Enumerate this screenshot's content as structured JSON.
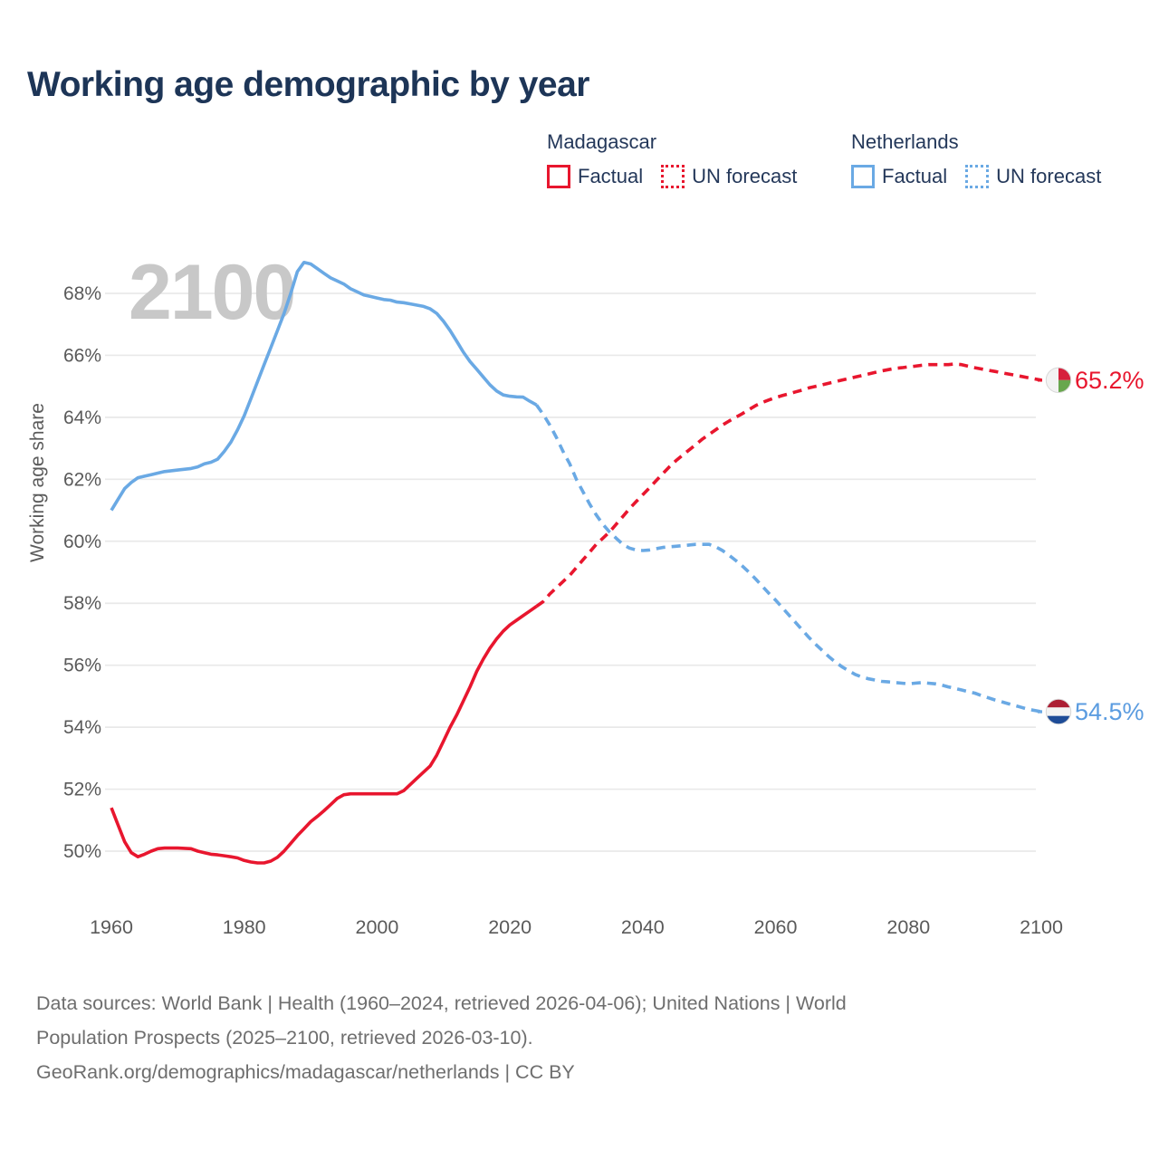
{
  "title": "Working age demographic by year",
  "watermark": "2100",
  "legend": {
    "groups": [
      {
        "country": "Madagascar",
        "factual_label": "Factual",
        "forecast_label": "UN forecast",
        "color": "#e8162e"
      },
      {
        "country": "Netherlands",
        "factual_label": "Factual",
        "forecast_label": "UN forecast",
        "color": "#6aa9e4"
      }
    ]
  },
  "footer": {
    "lines": [
      "Data sources: World Bank | Health (1960–2024, retrieved 2026-04-06); United Nations | World",
      "Population Prospects (2025–2100, retrieved 2026-03-10).",
      "GeoRank.org/demographics/madagascar/netherlands | CC BY"
    ]
  },
  "chart_data": {
    "type": "line",
    "title": "Working age demographic by year",
    "xlabel": "",
    "ylabel": "Working age share",
    "x_ticks": [
      1960,
      1980,
      2000,
      2020,
      2040,
      2060,
      2080,
      2100
    ],
    "y_ticks": [
      50,
      52,
      54,
      56,
      58,
      60,
      62,
      64,
      66,
      68
    ],
    "y_tick_suffix": "%",
    "xlim": [
      1960,
      2100
    ],
    "ylim": [
      50,
      68
    ],
    "grid": true,
    "legend_position": "top-right",
    "colors": {
      "madagascar": "#e8162e",
      "netherlands": "#6aa9e4",
      "grid": "#e9e9e9",
      "axis_text": "#5a5a5a",
      "watermark": "#c8c8c8"
    },
    "series": [
      {
        "id": "netherlands-factual",
        "country": "Netherlands",
        "kind": "Factual",
        "style": "solid",
        "color": "#6aa9e4",
        "points": [
          [
            1960,
            61.0
          ],
          [
            1961,
            61.35
          ],
          [
            1962,
            61.7
          ],
          [
            1963,
            61.9
          ],
          [
            1964,
            62.05
          ],
          [
            1965,
            62.1
          ],
          [
            1966,
            62.15
          ],
          [
            1967,
            62.2
          ],
          [
            1968,
            62.25
          ],
          [
            1970,
            62.3
          ],
          [
            1972,
            62.35
          ],
          [
            1973,
            62.4
          ],
          [
            1974,
            62.5
          ],
          [
            1975,
            62.55
          ],
          [
            1976,
            62.65
          ],
          [
            1977,
            62.9
          ],
          [
            1978,
            63.2
          ],
          [
            1979,
            63.6
          ],
          [
            1980,
            64.05
          ],
          [
            1981,
            64.6
          ],
          [
            1982,
            65.15
          ],
          [
            1983,
            65.7
          ],
          [
            1984,
            66.25
          ],
          [
            1985,
            66.8
          ],
          [
            1986,
            67.35
          ],
          [
            1987,
            68.0
          ],
          [
            1988,
            68.7
          ],
          [
            1989,
            69.0
          ],
          [
            1990,
            68.95
          ],
          [
            1991,
            68.8
          ],
          [
            1992,
            68.65
          ],
          [
            1993,
            68.5
          ],
          [
            1994,
            68.4
          ],
          [
            1995,
            68.3
          ],
          [
            1996,
            68.15
          ],
          [
            1997,
            68.05
          ],
          [
            1998,
            67.95
          ],
          [
            1999,
            67.9
          ],
          [
            2000,
            67.85
          ],
          [
            2001,
            67.8
          ],
          [
            2002,
            67.78
          ],
          [
            2003,
            67.72
          ],
          [
            2004,
            67.7
          ],
          [
            2005,
            67.66
          ],
          [
            2006,
            67.62
          ],
          [
            2007,
            67.58
          ],
          [
            2008,
            67.5
          ],
          [
            2009,
            67.35
          ],
          [
            2010,
            67.1
          ],
          [
            2011,
            66.8
          ],
          [
            2012,
            66.45
          ],
          [
            2013,
            66.1
          ],
          [
            2014,
            65.8
          ],
          [
            2015,
            65.55
          ],
          [
            2016,
            65.3
          ],
          [
            2017,
            65.05
          ],
          [
            2018,
            64.85
          ],
          [
            2019,
            64.72
          ],
          [
            2020,
            64.68
          ],
          [
            2021,
            64.66
          ],
          [
            2022,
            64.65
          ],
          [
            2023,
            64.52
          ],
          [
            2024,
            64.4
          ]
        ]
      },
      {
        "id": "netherlands-forecast",
        "country": "Netherlands",
        "kind": "UN forecast",
        "style": "dashed",
        "color": "#6aa9e4",
        "points": [
          [
            2024,
            64.4
          ],
          [
            2025,
            64.1
          ],
          [
            2026,
            63.75
          ],
          [
            2027,
            63.35
          ],
          [
            2028,
            62.9
          ],
          [
            2029,
            62.5
          ],
          [
            2030,
            62.0
          ],
          [
            2031,
            61.6
          ],
          [
            2032,
            61.2
          ],
          [
            2033,
            60.85
          ],
          [
            2034,
            60.55
          ],
          [
            2035,
            60.3
          ],
          [
            2036,
            60.1
          ],
          [
            2037,
            59.9
          ],
          [
            2038,
            59.78
          ],
          [
            2039,
            59.72
          ],
          [
            2040,
            59.7
          ],
          [
            2041,
            59.72
          ],
          [
            2042,
            59.76
          ],
          [
            2043,
            59.8
          ],
          [
            2044,
            59.82
          ],
          [
            2045,
            59.84
          ],
          [
            2046,
            59.86
          ],
          [
            2047,
            59.88
          ],
          [
            2048,
            59.9
          ],
          [
            2050,
            59.9
          ],
          [
            2051,
            59.82
          ],
          [
            2052,
            59.7
          ],
          [
            2053,
            59.55
          ],
          [
            2054,
            59.38
          ],
          [
            2055,
            59.2
          ],
          [
            2056,
            59.0
          ],
          [
            2057,
            58.78
          ],
          [
            2058,
            58.55
          ],
          [
            2059,
            58.32
          ],
          [
            2060,
            58.1
          ],
          [
            2061,
            57.86
          ],
          [
            2062,
            57.62
          ],
          [
            2063,
            57.38
          ],
          [
            2064,
            57.14
          ],
          [
            2065,
            56.9
          ],
          [
            2066,
            56.68
          ],
          [
            2067,
            56.48
          ],
          [
            2068,
            56.28
          ],
          [
            2069,
            56.1
          ],
          [
            2070,
            55.95
          ],
          [
            2071,
            55.82
          ],
          [
            2072,
            55.7
          ],
          [
            2073,
            55.62
          ],
          [
            2074,
            55.56
          ],
          [
            2075,
            55.52
          ],
          [
            2076,
            55.48
          ],
          [
            2077,
            55.46
          ],
          [
            2078,
            55.44
          ],
          [
            2079,
            55.42
          ],
          [
            2080,
            55.4
          ],
          [
            2081,
            55.42
          ],
          [
            2082,
            55.44
          ],
          [
            2083,
            55.42
          ],
          [
            2084,
            55.4
          ],
          [
            2085,
            55.36
          ],
          [
            2086,
            55.3
          ],
          [
            2087,
            55.25
          ],
          [
            2088,
            55.2
          ],
          [
            2089,
            55.15
          ],
          [
            2090,
            55.1
          ],
          [
            2091,
            55.02
          ],
          [
            2092,
            54.95
          ],
          [
            2093,
            54.88
          ],
          [
            2094,
            54.82
          ],
          [
            2095,
            54.76
          ],
          [
            2096,
            54.7
          ],
          [
            2097,
            54.64
          ],
          [
            2098,
            54.58
          ],
          [
            2099,
            54.54
          ],
          [
            2100,
            54.5
          ]
        ]
      },
      {
        "id": "madagascar-factual",
        "country": "Madagascar",
        "kind": "Factual",
        "style": "solid",
        "color": "#e8162e",
        "points": [
          [
            1960,
            51.4
          ],
          [
            1961,
            50.85
          ],
          [
            1962,
            50.3
          ],
          [
            1963,
            49.95
          ],
          [
            1964,
            49.82
          ],
          [
            1965,
            49.9
          ],
          [
            1966,
            50.0
          ],
          [
            1967,
            50.08
          ],
          [
            1968,
            50.1
          ],
          [
            1970,
            50.1
          ],
          [
            1972,
            50.08
          ],
          [
            1973,
            50.0
          ],
          [
            1974,
            49.95
          ],
          [
            1975,
            49.9
          ],
          [
            1976,
            49.88
          ],
          [
            1977,
            49.85
          ],
          [
            1978,
            49.82
          ],
          [
            1979,
            49.78
          ],
          [
            1980,
            49.7
          ],
          [
            1981,
            49.65
          ],
          [
            1982,
            49.62
          ],
          [
            1983,
            49.62
          ],
          [
            1984,
            49.68
          ],
          [
            1985,
            49.8
          ],
          [
            1986,
            50.0
          ],
          [
            1987,
            50.25
          ],
          [
            1988,
            50.5
          ],
          [
            1989,
            50.72
          ],
          [
            1990,
            50.95
          ],
          [
            1991,
            51.12
          ],
          [
            1992,
            51.3
          ],
          [
            1993,
            51.5
          ],
          [
            1994,
            51.7
          ],
          [
            1995,
            51.82
          ],
          [
            1996,
            51.85
          ],
          [
            1998,
            51.85
          ],
          [
            2000,
            51.85
          ],
          [
            2002,
            51.85
          ],
          [
            2003,
            51.85
          ],
          [
            2004,
            51.95
          ],
          [
            2005,
            52.15
          ],
          [
            2006,
            52.35
          ],
          [
            2007,
            52.55
          ],
          [
            2008,
            52.75
          ],
          [
            2009,
            53.1
          ],
          [
            2010,
            53.55
          ],
          [
            2011,
            54.0
          ],
          [
            2012,
            54.4
          ],
          [
            2013,
            54.85
          ],
          [
            2014,
            55.3
          ],
          [
            2015,
            55.8
          ],
          [
            2016,
            56.2
          ],
          [
            2017,
            56.55
          ],
          [
            2018,
            56.85
          ],
          [
            2019,
            57.1
          ],
          [
            2020,
            57.3
          ],
          [
            2021,
            57.45
          ],
          [
            2022,
            57.6
          ],
          [
            2023,
            57.75
          ],
          [
            2024,
            57.9
          ]
        ]
      },
      {
        "id": "madagascar-forecast",
        "country": "Madagascar",
        "kind": "UN forecast",
        "style": "dashed",
        "color": "#e8162e",
        "points": [
          [
            2024,
            57.9
          ],
          [
            2025,
            58.05
          ],
          [
            2026,
            58.3
          ],
          [
            2027,
            58.5
          ],
          [
            2028,
            58.7
          ],
          [
            2029,
            58.9
          ],
          [
            2030,
            59.15
          ],
          [
            2031,
            59.4
          ],
          [
            2032,
            59.65
          ],
          [
            2033,
            59.9
          ],
          [
            2034,
            60.1
          ],
          [
            2035,
            60.3
          ],
          [
            2036,
            60.55
          ],
          [
            2037,
            60.8
          ],
          [
            2038,
            61.05
          ],
          [
            2039,
            61.28
          ],
          [
            2040,
            61.5
          ],
          [
            2041,
            61.72
          ],
          [
            2042,
            61.95
          ],
          [
            2043,
            62.18
          ],
          [
            2044,
            62.4
          ],
          [
            2045,
            62.6
          ],
          [
            2046,
            62.78
          ],
          [
            2047,
            62.95
          ],
          [
            2048,
            63.12
          ],
          [
            2049,
            63.3
          ],
          [
            2050,
            63.45
          ],
          [
            2051,
            63.6
          ],
          [
            2052,
            63.75
          ],
          [
            2053,
            63.88
          ],
          [
            2054,
            64.0
          ],
          [
            2055,
            64.12
          ],
          [
            2056,
            64.25
          ],
          [
            2057,
            64.38
          ],
          [
            2058,
            64.48
          ],
          [
            2059,
            64.56
          ],
          [
            2060,
            64.64
          ],
          [
            2061,
            64.7
          ],
          [
            2062,
            64.76
          ],
          [
            2063,
            64.82
          ],
          [
            2064,
            64.88
          ],
          [
            2065,
            64.95
          ],
          [
            2066,
            65.0
          ],
          [
            2067,
            65.05
          ],
          [
            2068,
            65.1
          ],
          [
            2069,
            65.15
          ],
          [
            2070,
            65.2
          ],
          [
            2071,
            65.25
          ],
          [
            2072,
            65.3
          ],
          [
            2073,
            65.35
          ],
          [
            2074,
            65.4
          ],
          [
            2075,
            65.45
          ],
          [
            2076,
            65.5
          ],
          [
            2077,
            65.54
          ],
          [
            2078,
            65.58
          ],
          [
            2079,
            65.6
          ],
          [
            2080,
            65.63
          ],
          [
            2081,
            65.65
          ],
          [
            2082,
            65.68
          ],
          [
            2083,
            65.7
          ],
          [
            2085,
            65.7
          ],
          [
            2086,
            65.7
          ],
          [
            2087,
            65.72
          ],
          [
            2088,
            65.7
          ],
          [
            2089,
            65.65
          ],
          [
            2090,
            65.6
          ],
          [
            2091,
            65.56
          ],
          [
            2092,
            65.52
          ],
          [
            2093,
            65.48
          ],
          [
            2094,
            65.44
          ],
          [
            2095,
            65.4
          ],
          [
            2096,
            65.36
          ],
          [
            2097,
            65.32
          ],
          [
            2098,
            65.28
          ],
          [
            2099,
            65.24
          ],
          [
            2100,
            65.2
          ]
        ]
      }
    ],
    "end_labels": [
      {
        "series": "madagascar-forecast",
        "text": "65.2%",
        "value": 65.2,
        "color": "#e8162e",
        "flag": "madagascar"
      },
      {
        "series": "netherlands-forecast",
        "text": "54.5%",
        "value": 54.5,
        "color": "#5b9ce0",
        "flag": "netherlands"
      }
    ],
    "flag_colors": {
      "madagascar": {
        "white": "#f3f3f3",
        "red": "#d6203c",
        "green": "#68a74e"
      },
      "netherlands": {
        "red": "#ac1e33",
        "white": "#f3f3f3",
        "blue": "#1e4c97"
      }
    }
  }
}
